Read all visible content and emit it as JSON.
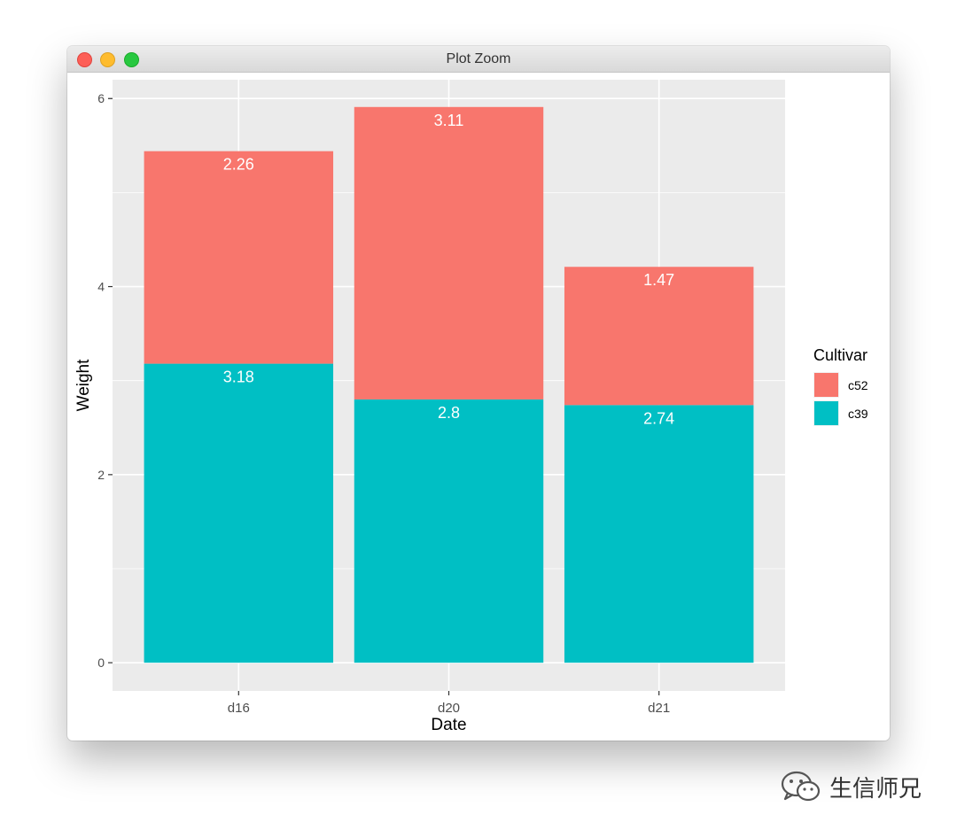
{
  "window": {
    "title": "Plot Zoom"
  },
  "watermark": {
    "text": "生信师兄"
  },
  "colors": {
    "c52": "#F8766D",
    "c39": "#00BFC4",
    "panel": "#EBEBEB",
    "grid": "#FFFFFF",
    "label_text": "#FFFFFF"
  },
  "chart_data": {
    "type": "bar",
    "stacked": true,
    "categories": [
      "d16",
      "d20",
      "d21"
    ],
    "series": [
      {
        "name": "c39",
        "values": [
          3.18,
          2.8,
          2.74
        ],
        "color": "#00BFC4"
      },
      {
        "name": "c52",
        "values": [
          2.26,
          3.11,
          1.47
        ],
        "color": "#F8766D"
      }
    ],
    "data_labels": [
      {
        "series": "c52",
        "labels": [
          "2.26",
          "3.11",
          "1.47"
        ]
      },
      {
        "series": "c39",
        "labels": [
          "3.18",
          "2.8",
          "2.74"
        ]
      }
    ],
    "title": "",
    "xlabel": "Date",
    "ylabel": "Weight",
    "ylim": [
      -0.3,
      6.2
    ],
    "yticks": [
      0,
      2,
      4,
      6
    ],
    "ytick_labels": [
      "0",
      "2",
      "4",
      "6"
    ],
    "grid": true,
    "legend": {
      "title": "Cultivar",
      "placement": "right",
      "entries": [
        "c52",
        "c39"
      ]
    }
  }
}
